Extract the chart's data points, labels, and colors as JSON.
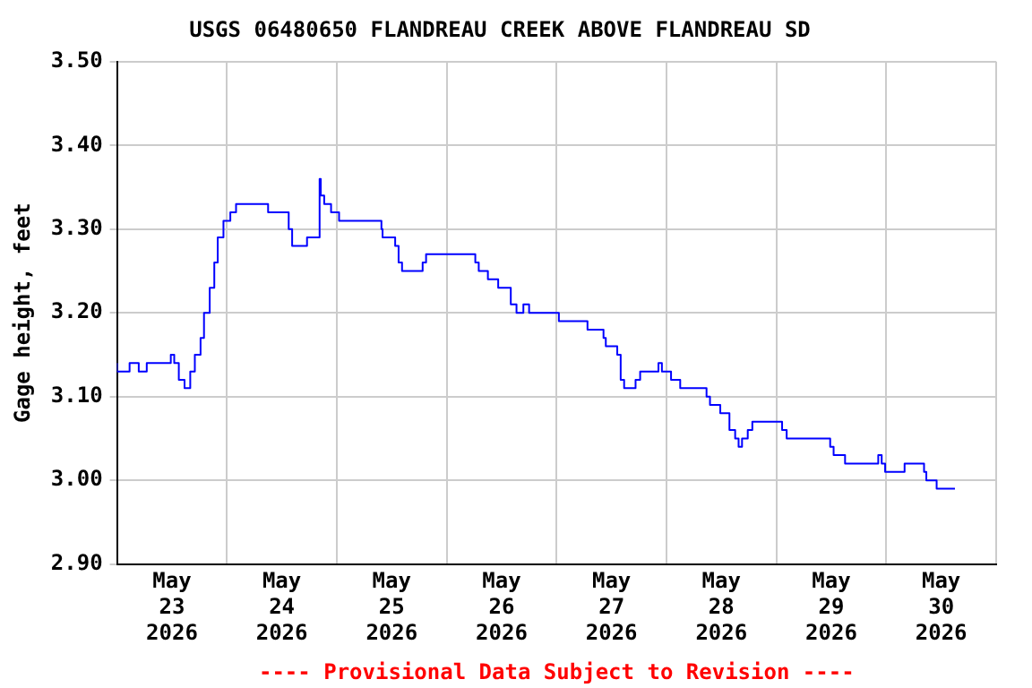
{
  "chart_data": {
    "type": "step",
    "title": "USGS 06480650 FLANDREAU CREEK ABOVE FLANDREAU SD",
    "ylabel": "Gage height, feet",
    "annotations": [
      "---- Provisional Data Subject to Revision ----"
    ],
    "x": [
      "2026-05-23T00:00",
      "2026-05-23T02:45",
      "2026-05-23T04:45",
      "2026-05-23T06:30",
      "2026-05-23T08:30",
      "2026-05-23T11:45",
      "2026-05-23T12:30",
      "2026-05-23T13:30",
      "2026-05-23T14:45",
      "2026-05-23T16:00",
      "2026-05-23T17:00",
      "2026-05-23T18:15",
      "2026-05-23T19:00",
      "2026-05-23T20:15",
      "2026-05-23T21:15",
      "2026-05-23T22:00",
      "2026-05-23T23:15",
      "2026-05-24T00:45",
      "2026-05-24T02:00",
      "2026-05-24T04:15",
      "2026-05-24T09:00",
      "2026-05-24T09:45",
      "2026-05-24T13:30",
      "2026-05-24T14:15",
      "2026-05-24T15:30",
      "2026-05-24T17:30",
      "2026-05-24T18:15",
      "2026-05-24T20:15",
      "2026-05-24T20:30",
      "2026-05-24T21:15",
      "2026-05-24T22:45",
      "2026-05-25T00:30",
      "2026-05-25T05:00",
      "2026-05-25T09:45",
      "2026-05-25T10:00",
      "2026-05-25T11:00",
      "2026-05-25T12:45",
      "2026-05-25T13:30",
      "2026-05-25T14:15",
      "2026-05-25T15:15",
      "2026-05-25T18:45",
      "2026-05-25T19:30",
      "2026-05-25T20:30",
      "2026-05-26T06:15",
      "2026-05-26T07:00",
      "2026-05-26T09:00",
      "2026-05-26T11:15",
      "2026-05-26T14:00",
      "2026-05-26T15:15",
      "2026-05-26T16:45",
      "2026-05-26T18:00",
      "2026-05-26T19:00",
      "2026-05-27T00:30",
      "2026-05-27T01:00",
      "2026-05-27T06:45",
      "2026-05-27T07:30",
      "2026-05-27T10:15",
      "2026-05-27T10:45",
      "2026-05-27T13:15",
      "2026-05-27T14:00",
      "2026-05-27T14:45",
      "2026-05-27T16:00",
      "2026-05-27T17:15",
      "2026-05-27T18:15",
      "2026-05-27T19:15",
      "2026-05-27T22:15",
      "2026-05-27T23:00",
      "2026-05-28T01:00",
      "2026-05-28T03:00",
      "2026-05-28T03:45",
      "2026-05-28T08:45",
      "2026-05-28T09:30",
      "2026-05-28T11:45",
      "2026-05-28T13:45",
      "2026-05-28T15:00",
      "2026-05-28T15:45",
      "2026-05-28T16:30",
      "2026-05-28T17:45",
      "2026-05-28T18:45",
      "2026-05-28T19:30",
      "2026-05-29T01:15",
      "2026-05-29T02:15",
      "2026-05-29T03:15",
      "2026-05-29T11:45",
      "2026-05-29T12:30",
      "2026-05-29T15:00",
      "2026-05-29T16:45",
      "2026-05-29T22:15",
      "2026-05-29T23:00",
      "2026-05-29T23:45",
      "2026-05-30T00:30",
      "2026-05-30T04:00",
      "2026-05-30T04:30",
      "2026-05-30T08:15",
      "2026-05-30T08:45",
      "2026-05-30T11:00",
      "2026-05-30T13:45",
      "2026-05-30T15:00"
    ],
    "series": [
      {
        "color": "#0000ff",
        "values": [
          3.14,
          3.13,
          3.14,
          3.13,
          3.14,
          3.14,
          3.15,
          3.14,
          3.12,
          3.11,
          3.13,
          3.15,
          3.17,
          3.2,
          3.23,
          3.26,
          3.29,
          3.31,
          3.32,
          3.33,
          3.33,
          3.32,
          3.32,
          3.3,
          3.28,
          3.28,
          3.29,
          3.29,
          3.36,
          3.34,
          3.33,
          3.32,
          3.31,
          3.31,
          3.3,
          3.29,
          3.29,
          3.28,
          3.26,
          3.25,
          3.25,
          3.26,
          3.27,
          3.27,
          3.26,
          3.25,
          3.24,
          3.23,
          3.21,
          3.2,
          3.21,
          3.2,
          3.2,
          3.19,
          3.19,
          3.18,
          3.18,
          3.17,
          3.16,
          3.15,
          3.12,
          3.11,
          3.11,
          3.12,
          3.13,
          3.13,
          3.14,
          3.13,
          3.12,
          3.11,
          3.11,
          3.1,
          3.09,
          3.08,
          3.06,
          3.05,
          3.04,
          3.05,
          3.06,
          3.07,
          3.07,
          3.06,
          3.05,
          3.05,
          3.04,
          3.03,
          3.02,
          3.02,
          3.03,
          3.02,
          3.01,
          3.01,
          3.02,
          3.02,
          3.01,
          3.0,
          2.99,
          2.99
        ]
      }
    ],
    "xlim": [
      "2026-05-23T00:00",
      "2026-05-31T00:00"
    ],
    "xticks": [
      {
        "value": "2026-05-23T00:00",
        "label": null
      },
      {
        "value": "2026-05-23T12:00",
        "label": "May 23 2026"
      },
      {
        "value": "2026-05-24T00:00",
        "label": null
      },
      {
        "value": "2026-05-24T12:00",
        "label": "May 24 2026"
      },
      {
        "value": "2026-05-25T00:00",
        "label": null
      },
      {
        "value": "2026-05-25T12:00",
        "label": "May 25 2026"
      },
      {
        "value": "2026-05-26T00:00",
        "label": null
      },
      {
        "value": "2026-05-26T12:00",
        "label": "May 26 2026"
      },
      {
        "value": "2026-05-27T00:00",
        "label": null
      },
      {
        "value": "2026-05-27T12:00",
        "label": "May 27 2026"
      },
      {
        "value": "2026-05-28T00:00",
        "label": null
      },
      {
        "value": "2026-05-28T12:00",
        "label": "May 28 2026"
      },
      {
        "value": "2026-05-29T00:00",
        "label": null
      },
      {
        "value": "2026-05-29T12:00",
        "label": "May 29 2026"
      },
      {
        "value": "2026-05-30T00:00",
        "label": null
      },
      {
        "value": "2026-05-30T12:00",
        "label": "May 30 2026"
      },
      {
        "value": "2026-05-31T00:00",
        "label": null
      }
    ],
    "ylim": [
      2.9,
      3.5
    ],
    "yticks": [
      {
        "value": 2.9,
        "label": "2.90"
      },
      {
        "value": 3.0,
        "label": "3.00"
      },
      {
        "value": 3.1,
        "label": "3.10"
      },
      {
        "value": 3.2,
        "label": "3.20"
      },
      {
        "value": 3.3,
        "label": "3.30"
      },
      {
        "value": 3.4,
        "label": "3.40"
      },
      {
        "value": 3.5,
        "label": "3.50"
      }
    ],
    "grid": true,
    "legend": false
  }
}
